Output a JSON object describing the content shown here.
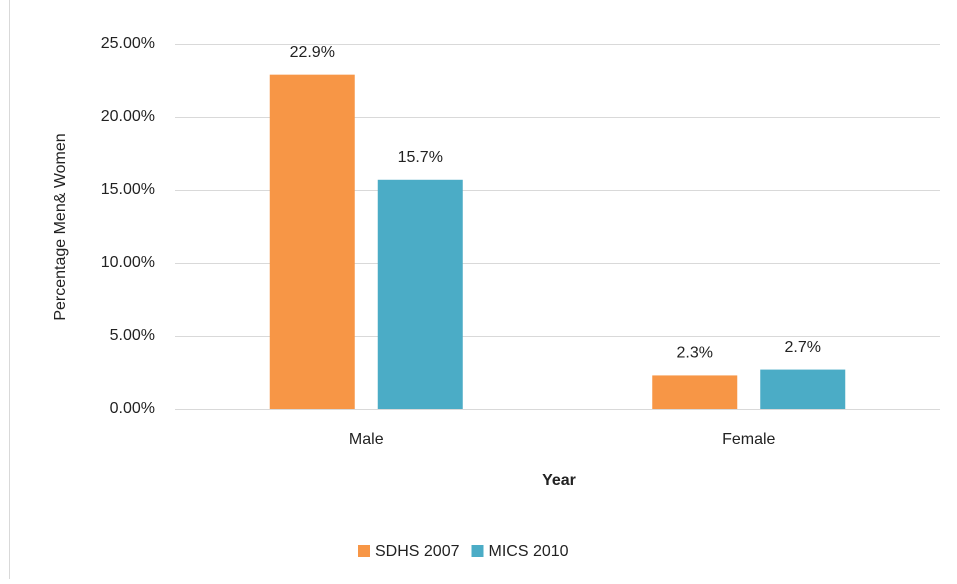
{
  "chart_data": {
    "type": "bar",
    "x_label": "Year",
    "y_label": "Percentage Men& Women",
    "categories": [
      "Male",
      "Female"
    ],
    "series": [
      {
        "name": "SDHS 2007",
        "color": "#f79646",
        "values": [
          22.9,
          2.3
        ],
        "value_labels": [
          "22.9%",
          "2.3%"
        ]
      },
      {
        "name": "MICS 2010",
        "color": "#4bacc6",
        "values": [
          15.7,
          2.7
        ],
        "value_labels": [
          "15.7%",
          "2.7%"
        ]
      }
    ],
    "ylim": [
      0,
      25
    ],
    "yticks": [
      {
        "value": 0,
        "label": "0.00%"
      },
      {
        "value": 5,
        "label": "5.00%"
      },
      {
        "value": 10,
        "label": "10.00%"
      },
      {
        "value": 15,
        "label": "15.00%"
      },
      {
        "value": 20,
        "label": "20.00%"
      },
      {
        "value": 25,
        "label": "25.00%"
      }
    ],
    "grid": true,
    "legend": "bottom"
  }
}
